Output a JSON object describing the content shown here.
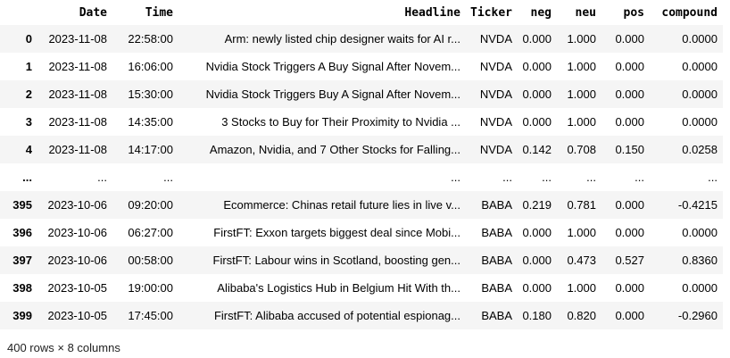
{
  "table": {
    "columns": [
      "",
      "Date",
      "Time",
      "Headline",
      "Ticker",
      "neg",
      "neu",
      "pos",
      "compound"
    ],
    "rows": [
      {
        "index": "0",
        "date": "2023-11-08",
        "time": "22:58:00",
        "headline": "Arm: newly listed chip designer waits for AI r...",
        "ticker": "NVDA",
        "neg": "0.000",
        "neu": "1.000",
        "pos": "0.000",
        "compound": "0.0000"
      },
      {
        "index": "1",
        "date": "2023-11-08",
        "time": "16:06:00",
        "headline": "Nvidia Stock Triggers A Buy Signal After Novem...",
        "ticker": "NVDA",
        "neg": "0.000",
        "neu": "1.000",
        "pos": "0.000",
        "compound": "0.0000"
      },
      {
        "index": "2",
        "date": "2023-11-08",
        "time": "15:30:00",
        "headline": "Nvidia Stock Triggers Buy A Signal After Novem...",
        "ticker": "NVDA",
        "neg": "0.000",
        "neu": "1.000",
        "pos": "0.000",
        "compound": "0.0000"
      },
      {
        "index": "3",
        "date": "2023-11-08",
        "time": "14:35:00",
        "headline": "3 Stocks to Buy for Their Proximity to Nvidia ...",
        "ticker": "NVDA",
        "neg": "0.000",
        "neu": "1.000",
        "pos": "0.000",
        "compound": "0.0000"
      },
      {
        "index": "4",
        "date": "2023-11-08",
        "time": "14:17:00",
        "headline": "Amazon, Nvidia, and 7 Other Stocks for Falling...",
        "ticker": "NVDA",
        "neg": "0.142",
        "neu": "0.708",
        "pos": "0.150",
        "compound": "0.0258"
      },
      {
        "index": "...",
        "date": "...",
        "time": "...",
        "headline": "...",
        "ticker": "...",
        "neg": "...",
        "neu": "...",
        "pos": "...",
        "compound": "..."
      },
      {
        "index": "395",
        "date": "2023-10-06",
        "time": "09:20:00",
        "headline": "Ecommerce: Chinas retail future lies in live v...",
        "ticker": "BABA",
        "neg": "0.219",
        "neu": "0.781",
        "pos": "0.000",
        "compound": "-0.4215"
      },
      {
        "index": "396",
        "date": "2023-10-06",
        "time": "06:27:00",
        "headline": "FirstFT: Exxon targets biggest deal since Mobi...",
        "ticker": "BABA",
        "neg": "0.000",
        "neu": "1.000",
        "pos": "0.000",
        "compound": "0.0000"
      },
      {
        "index": "397",
        "date": "2023-10-06",
        "time": "00:58:00",
        "headline": "FirstFT: Labour wins in Scotland, boosting gen...",
        "ticker": "BABA",
        "neg": "0.000",
        "neu": "0.473",
        "pos": "0.527",
        "compound": "0.8360"
      },
      {
        "index": "398",
        "date": "2023-10-05",
        "time": "19:00:00",
        "headline": "Alibaba's Logistics Hub in Belgium Hit With th...",
        "ticker": "BABA",
        "neg": "0.000",
        "neu": "1.000",
        "pos": "0.000",
        "compound": "0.0000"
      },
      {
        "index": "399",
        "date": "2023-10-05",
        "time": "17:45:00",
        "headline": "FirstFT: Alibaba accused of potential espionag...",
        "ticker": "BABA",
        "neg": "0.180",
        "neu": "0.820",
        "pos": "0.000",
        "compound": "-0.2960"
      }
    ]
  },
  "summary": "400 rows × 8 columns",
  "colors": {
    "stripe": "#f5f5f5",
    "background": "#ffffff",
    "text": "#000000"
  }
}
